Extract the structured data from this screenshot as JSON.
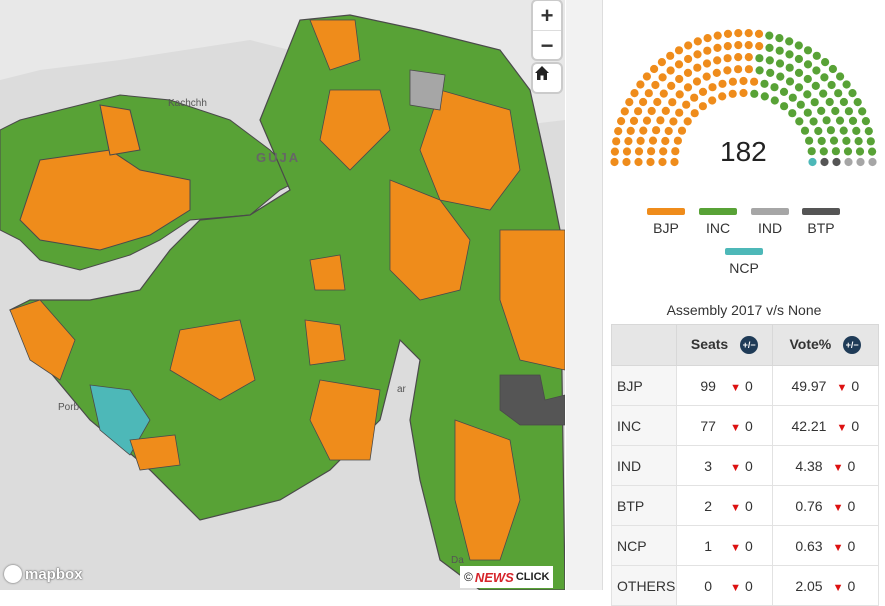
{
  "map": {
    "labels": {
      "kachchh": "Kachchh",
      "gujarat": "GUJA",
      "porbandar": "Porb",
      "bhavnagar": "ar",
      "daman": "Da"
    },
    "colors": {
      "water": "#dcdcdc",
      "land": "#e8e8e8",
      "border": "#4a4a4a"
    },
    "controls": {
      "zoom_in": "+",
      "zoom_out": "−"
    },
    "attribution": {
      "copyright": "©",
      "news": "NEWS",
      "click": "CLICK"
    },
    "mapbox_label": "mapbox"
  },
  "seat_chart": {
    "total": "182",
    "counts": {
      "BJP": 99,
      "INC": 77,
      "IND": 3,
      "BTP": 2,
      "NCP": 1
    }
  },
  "legend": [
    {
      "key": "BJP",
      "label": "BJP",
      "color": "#ef8c1b"
    },
    {
      "key": "INC",
      "label": "INC",
      "color": "#58a236"
    },
    {
      "key": "IND",
      "label": "IND",
      "color": "#a6a6a6"
    },
    {
      "key": "BTP",
      "label": "BTP",
      "color": "#555555"
    },
    {
      "key": "NCP",
      "label": "NCP",
      "color": "#4db8b8"
    }
  ],
  "comparison": {
    "title": "Assembly 2017 v/s None",
    "headers": {
      "seats": "Seats",
      "vote": "Vote%",
      "toggle": "+/−"
    },
    "rows": [
      {
        "party": "BJP",
        "seats": "99",
        "seats_change": "0",
        "vote": "49.97",
        "vote_change": "0"
      },
      {
        "party": "INC",
        "seats": "77",
        "seats_change": "0",
        "vote": "42.21",
        "vote_change": "0"
      },
      {
        "party": "IND",
        "seats": "3",
        "seats_change": "0",
        "vote": "4.38",
        "vote_change": "0"
      },
      {
        "party": "BTP",
        "seats": "2",
        "seats_change": "0",
        "vote": "0.76",
        "vote_change": "0"
      },
      {
        "party": "NCP",
        "seats": "1",
        "seats_change": "0",
        "vote": "0.63",
        "vote_change": "0"
      },
      {
        "party": "OTHERS",
        "seats": "0",
        "seats_change": "0",
        "vote": "2.05",
        "vote_change": "0"
      }
    ]
  }
}
